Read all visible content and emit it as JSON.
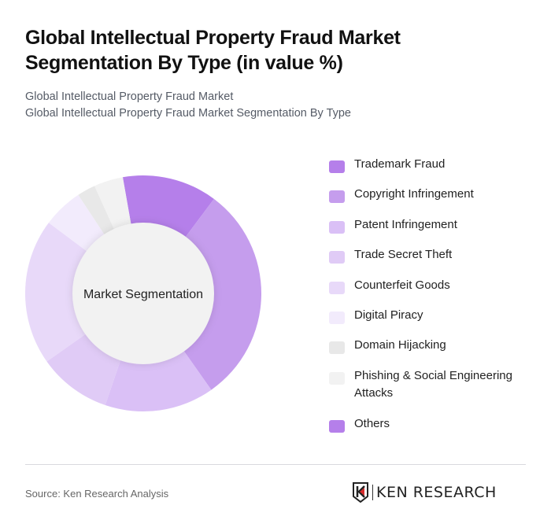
{
  "header": {
    "title": "Global Intellectual Property Fraud Market Segmentation By Type (in value %)",
    "subtitle_1": "Global Intellectual Property Fraud Market",
    "subtitle_2": "Global Intellectual Property Fraud Market Segmentation By Type"
  },
  "chart": {
    "center_label": "Market Segmentation"
  },
  "legend": {
    "items": [
      {
        "label": "Trademark Fraud",
        "color": "#b57fea"
      },
      {
        "label": "Copyright Infringement",
        "color": "#c59ded"
      },
      {
        "label": "Patent Infringement",
        "color": "#dac0f6"
      },
      {
        "label": "Trade Secret Theft",
        "color": "#e0cbf6"
      },
      {
        "label": "Counterfeit Goods",
        "color": "#e8d9f9"
      },
      {
        "label": "Digital Piracy",
        "color": "#f2ebfc"
      },
      {
        "label": "Domain Hijacking",
        "color": "#e8e8e8"
      },
      {
        "label": "Phishing & Social Engineering Attacks",
        "color": "#f2f2f2"
      },
      {
        "label": "Others",
        "color": "#b57fea"
      }
    ]
  },
  "footer": {
    "source": "Source: Ken Research Analysis",
    "logo_text": "KEN RESEARCH"
  },
  "chart_data": {
    "type": "pie",
    "subtype": "donut",
    "title": "Global Intellectual Property Fraud Market Segmentation By Type (in value %)",
    "center_label": "Market Segmentation",
    "categories": [
      "Trademark Fraud",
      "Copyright Infringement",
      "Patent Infringement",
      "Trade Secret Theft",
      "Counterfeit Goods",
      "Digital Piracy",
      "Domain Hijacking",
      "Phishing & Social Engineering Attacks",
      "Others"
    ],
    "values": [
      13,
      30,
      15,
      10,
      20,
      5.5,
      2.5,
      4,
      0
    ],
    "colors": [
      "#b57fea",
      "#c59ded",
      "#dac0f6",
      "#e0cbf6",
      "#e8d9f9",
      "#f2ebfc",
      "#e8e8e8",
      "#f2f2f2",
      "#b57fea"
    ],
    "start_angle_deg": -10,
    "direction": "clockwise",
    "legend_position": "right",
    "units": "%"
  }
}
